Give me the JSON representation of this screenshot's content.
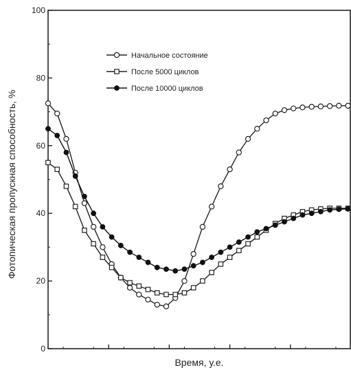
{
  "chart_data": {
    "type": "line",
    "title": "",
    "xlabel": "Время, у.е.",
    "ylabel": "Фотопическая пропускная способность, %",
    "ylim": [
      0,
      100
    ],
    "xlim": [
      0,
      100
    ],
    "yticks": [
      "0",
      "20",
      "40",
      "60",
      "80",
      "100"
    ],
    "grid": false,
    "legend_position": "top-left",
    "series": [
      {
        "name": "Начальное состояние",
        "marker": "circle-open",
        "color": "#222222",
        "x": [
          0,
          3,
          6,
          9,
          12,
          15,
          18,
          21,
          24,
          27,
          30,
          33,
          36,
          39,
          42,
          45,
          48,
          51,
          54,
          57,
          60,
          63,
          66,
          69,
          72,
          75,
          78,
          81,
          84,
          87,
          90,
          93,
          96,
          99
        ],
        "y": [
          72.5,
          69.5,
          62,
          52,
          43,
          36,
          30,
          25,
          21,
          18,
          16,
          14.5,
          13,
          12.5,
          15,
          20,
          28,
          36,
          42,
          48,
          53,
          58,
          62,
          65,
          67.5,
          69.5,
          70.5,
          71,
          71.3,
          71.5,
          71.6,
          71.7,
          71.8,
          71.8
        ]
      },
      {
        "name": "После 5000 циклов",
        "marker": "square-open",
        "color": "#222222",
        "x": [
          0,
          3,
          6,
          9,
          12,
          15,
          18,
          21,
          24,
          27,
          30,
          33,
          36,
          39,
          42,
          45,
          48,
          51,
          54,
          57,
          60,
          63,
          66,
          69,
          72,
          75,
          78,
          81,
          84,
          87,
          90,
          93,
          96,
          99
        ],
        "y": [
          55,
          53,
          48,
          42,
          35,
          31,
          27,
          24,
          21,
          19.5,
          18.5,
          17.5,
          16.5,
          16,
          16,
          16.5,
          18,
          20,
          22.5,
          25,
          27,
          29,
          31,
          33,
          35,
          37,
          38.5,
          39.5,
          40.5,
          41,
          41.3,
          41.5,
          41.5,
          41.5
        ]
      },
      {
        "name": "После 10000 циклов",
        "marker": "circle-filled",
        "color": "#111111",
        "x": [
          0,
          3,
          6,
          9,
          12,
          15,
          18,
          21,
          24,
          27,
          30,
          33,
          36,
          39,
          42,
          45,
          48,
          51,
          54,
          57,
          60,
          63,
          66,
          69,
          72,
          75,
          78,
          81,
          84,
          87,
          90,
          93,
          96,
          99
        ],
        "y": [
          65,
          63,
          58,
          51,
          45,
          40,
          36,
          33,
          30.5,
          28.5,
          27,
          25.5,
          24,
          23.5,
          23,
          23.5,
          24.5,
          25.5,
          27,
          28.5,
          30,
          31.5,
          33,
          34.5,
          35.5,
          36.5,
          37.5,
          38.5,
          39.5,
          40,
          40.5,
          41,
          41.2,
          41.3
        ]
      }
    ]
  }
}
